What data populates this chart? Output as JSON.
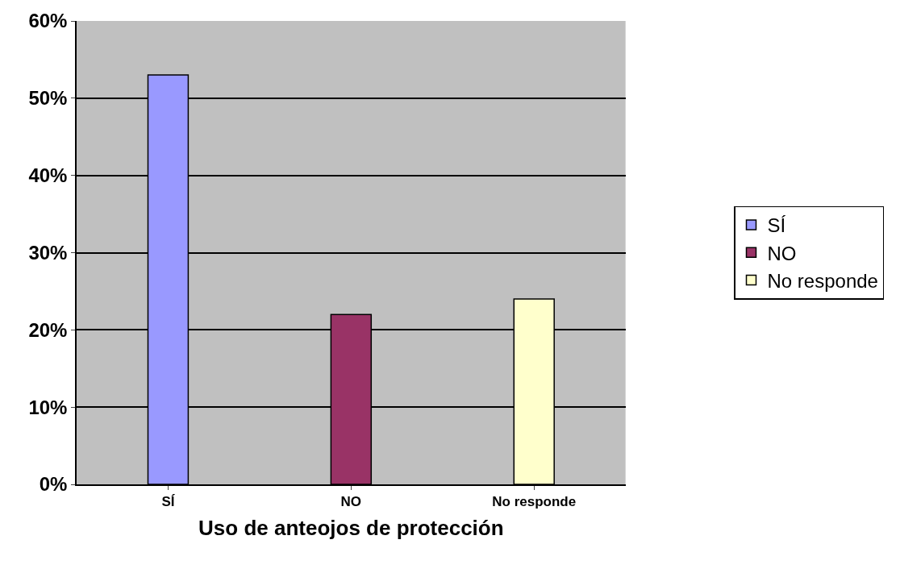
{
  "chart_data": {
    "type": "bar",
    "xlabel": "Uso de anteojos de protección",
    "categories": [
      "SÍ",
      "NO",
      "No responde"
    ],
    "series": [
      {
        "name": "SÍ",
        "color": "#9999ff",
        "values": [
          53,
          null,
          null
        ]
      },
      {
        "name": "NO",
        "color": "#993366",
        "values": [
          null,
          22,
          null
        ]
      },
      {
        "name": "No responde",
        "color": "#ffffcc",
        "values": [
          null,
          null,
          24
        ]
      }
    ],
    "ylim": [
      0,
      60
    ],
    "yticks": [
      {
        "value": 0,
        "label": "0%"
      },
      {
        "value": 10,
        "label": "10%"
      },
      {
        "value": 20,
        "label": "20%"
      },
      {
        "value": 30,
        "label": "30%"
      },
      {
        "value": 40,
        "label": "40%"
      },
      {
        "value": 50,
        "label": "50%"
      },
      {
        "value": 60,
        "label": "60%"
      }
    ],
    "grid": "y",
    "legend": "right"
  }
}
